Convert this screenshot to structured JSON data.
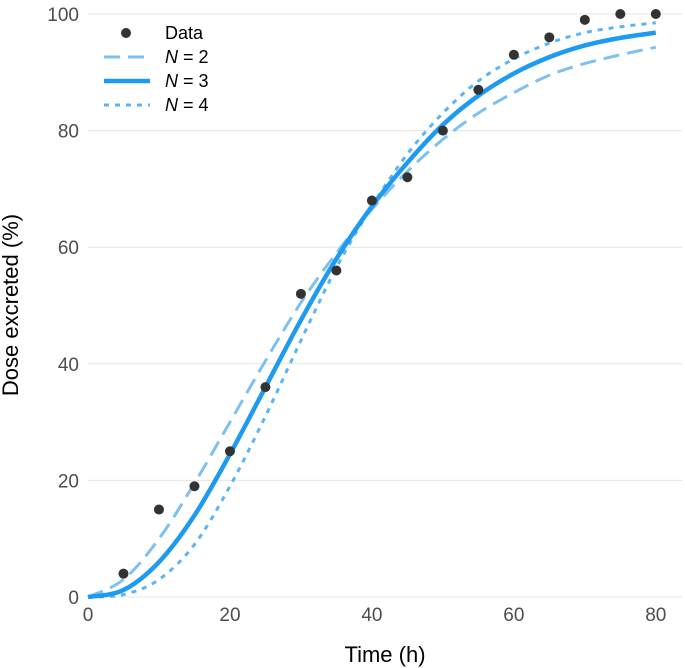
{
  "chart_data": {
    "type": "line",
    "title": "",
    "xlabel": "Time (h)",
    "ylabel": "Dose excreted (%)",
    "xlim": [
      0,
      82
    ],
    "ylim": [
      0,
      100
    ],
    "xticks": [
      0,
      20,
      40,
      60,
      80
    ],
    "yticks": [
      0,
      20,
      40,
      60,
      80,
      100
    ],
    "grid": "horizontal",
    "legend_position": "top-left",
    "points": {
      "name": "Data",
      "color": "#333333",
      "x": [
        5,
        10,
        15,
        20,
        25,
        30,
        35,
        40,
        45,
        50,
        55,
        60,
        65,
        70,
        75,
        80
      ],
      "y": [
        4,
        15,
        19,
        25,
        36,
        52,
        56,
        68,
        72,
        80,
        87,
        93,
        96,
        99,
        100,
        100
      ]
    },
    "series": [
      {
        "name": "N = 2",
        "label_var": "N",
        "label_eq": " = 2",
        "style": "dashed",
        "color": "#7ec0f0",
        "x": [
          0,
          5,
          10,
          15,
          20,
          25,
          30,
          35,
          40,
          45,
          50,
          55,
          60,
          65,
          70,
          75,
          80
        ],
        "y": [
          0,
          3,
          10,
          19.5,
          30,
          40.5,
          50.5,
          59,
          66.5,
          73,
          78.5,
          83,
          86.5,
          89.5,
          91.5,
          93,
          94.3
        ]
      },
      {
        "name": "N = 3",
        "label_var": "N",
        "label_eq": " = 3",
        "style": "solid",
        "color": "#1e9bf0",
        "x": [
          0,
          5,
          10,
          15,
          20,
          25,
          30,
          35,
          40,
          45,
          50,
          55,
          60,
          65,
          70,
          75,
          80
        ],
        "y": [
          0,
          1.2,
          6,
          14,
          24.5,
          36,
          47.5,
          58,
          67,
          74.5,
          81,
          86,
          89.8,
          92.6,
          94.6,
          95.9,
          96.8
        ]
      },
      {
        "name": "N = 4",
        "label_var": "N",
        "label_eq": " = 4",
        "style": "dotted",
        "color": "#5bb4f3",
        "x": [
          0,
          5,
          10,
          15,
          20,
          25,
          30,
          35,
          40,
          45,
          50,
          55,
          60,
          65,
          70,
          75,
          80
        ],
        "y": [
          0,
          0.4,
          3,
          9,
          19,
          31,
          44,
          56.5,
          67,
          76,
          83,
          88.5,
          92.3,
          95,
          96.8,
          97.8,
          98.5
        ]
      }
    ]
  }
}
